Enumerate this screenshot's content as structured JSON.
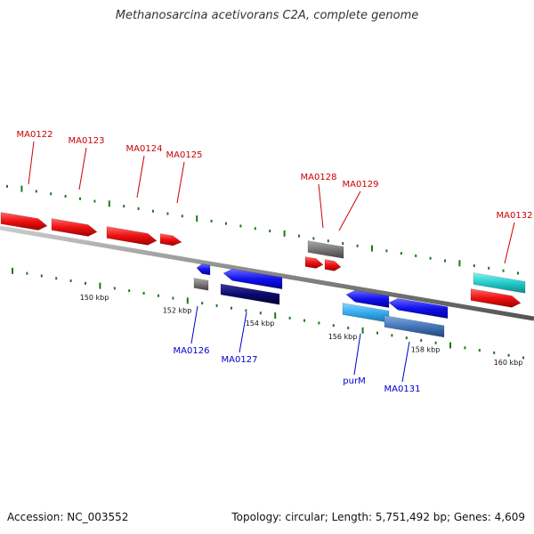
{
  "title": "Methanosarcina acetivorans C2A, complete genome",
  "footer": {
    "accession": "Accession: NC_003552",
    "summary": "Topology: circular; Length: 5,751,492 bp; Genes: 4,609"
  },
  "colors": {
    "forward_gene": "#ee1111",
    "reverse_gene": "#1111ee",
    "grey_gene": "#777777",
    "cyan_gene": "#22cccc",
    "light_blue_gene": "#33aaee",
    "dark_blue_gene": "#0a0a6e",
    "steel_blue_gene": "#4477bb",
    "backbone": "#888888",
    "tick": "#1a7a1a",
    "forward_label": "#cc0000",
    "reverse_label": "#0000cc"
  },
  "scale": {
    "ticks": [
      {
        "label": "150 kbp",
        "position_kbp": 150
      },
      {
        "label": "152 kbp",
        "position_kbp": 152
      },
      {
        "label": "154 kbp",
        "position_kbp": 154
      },
      {
        "label": "156 kbp",
        "position_kbp": 156
      },
      {
        "label": "158 kbp",
        "position_kbp": 158
      },
      {
        "label": "160 kbp",
        "position_kbp": 160
      }
    ]
  },
  "genes": [
    {
      "name": "MA0122",
      "strand": "forward"
    },
    {
      "name": "MA0123",
      "strand": "forward"
    },
    {
      "name": "MA0124",
      "strand": "forward"
    },
    {
      "name": "MA0125",
      "strand": "forward"
    },
    {
      "name": "MA0126",
      "strand": "reverse"
    },
    {
      "name": "MA0127",
      "strand": "reverse"
    },
    {
      "name": "MA0128",
      "strand": "forward"
    },
    {
      "name": "MA0129",
      "strand": "forward"
    },
    {
      "name": "purM",
      "strand": "reverse"
    },
    {
      "name": "MA0131",
      "strand": "reverse"
    },
    {
      "name": "MA0132",
      "strand": "forward"
    }
  ]
}
